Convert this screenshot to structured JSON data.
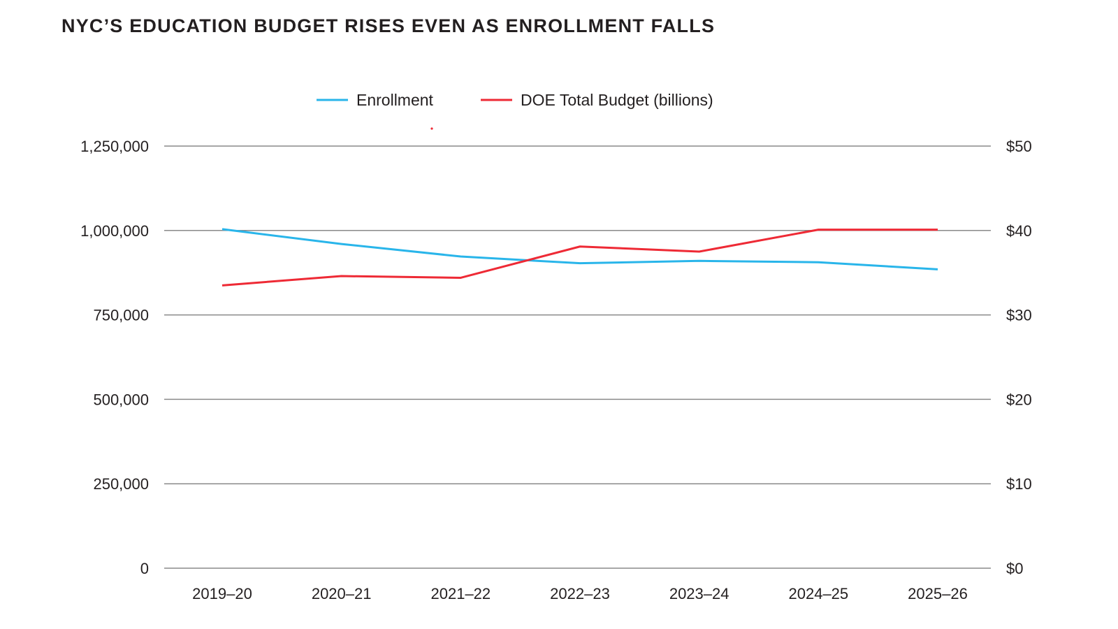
{
  "chart_data": {
    "type": "line",
    "title": "NYC’S EDUCATION BUDGET RISES EVEN AS ENROLLMENT FALLS",
    "categories": [
      "2019–20",
      "2020–21",
      "2021–22",
      "2022–23",
      "2023–24",
      "2024–25",
      "2025–26"
    ],
    "series": [
      {
        "name": "Enrollment",
        "axis": "left",
        "color": "#29b5ea",
        "values": [
          1004000,
          960000,
          923000,
          903000,
          910000,
          906000,
          885000
        ]
      },
      {
        "name": "DOE Total Budget (billions)",
        "axis": "right",
        "color": "#ee2a35",
        "values": [
          33.5,
          34.6,
          34.4,
          38.1,
          37.5,
          40.1,
          40.1
        ]
      }
    ],
    "left_axis": {
      "ylim": [
        0,
        1250000
      ],
      "ticks": [
        0,
        250000,
        500000,
        750000,
        1000000,
        1250000
      ],
      "tick_labels": [
        "0",
        "250,000",
        "500,000",
        "750,000",
        "1,000,000",
        "1,250,000"
      ]
    },
    "right_axis": {
      "ylim": [
        0,
        50
      ],
      "ticks": [
        0,
        10,
        20,
        30,
        40,
        50
      ],
      "tick_labels": [
        "$0",
        "$10",
        "$20",
        "$30",
        "$40",
        "$50"
      ]
    },
    "grid": true,
    "legend_placement": "top-center"
  }
}
